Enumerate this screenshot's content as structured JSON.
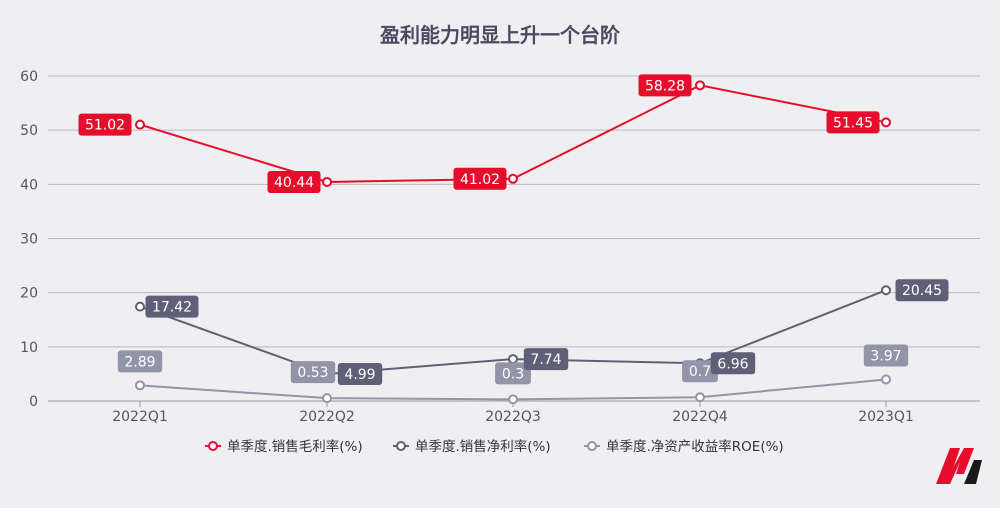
{
  "chart_data": {
    "type": "line",
    "title": "盈利能力明显上升一个台阶",
    "categories": [
      "2022Q1",
      "2022Q2",
      "2022Q3",
      "2022Q4",
      "2023Q1"
    ],
    "yticks": [
      0,
      10,
      20,
      30,
      40,
      50,
      60
    ],
    "ylim": [
      0,
      60
    ],
    "grid": true,
    "legend_position": "bottom",
    "series": [
      {
        "name": "单季度.销售毛利率(%)",
        "color": "#e60c2b",
        "labels": [
          "51.02",
          "40.44",
          "41.02",
          "58.28",
          "51.45"
        ],
        "values": [
          51.02,
          40.44,
          41.02,
          58.28,
          51.45
        ]
      },
      {
        "name": "单季度.销售净利率(%)",
        "color": "#5f6078",
        "labels": [
          "17.42",
          "4.99",
          "7.74",
          "6.96",
          "20.45"
        ],
        "values": [
          17.42,
          4.99,
          7.74,
          6.96,
          20.45
        ]
      },
      {
        "name": "单季度.净资产收益率ROE(%)",
        "color": "#9294a8",
        "labels": [
          "2.89",
          "0.53",
          "0.3",
          "0.7",
          "3.97"
        ],
        "values": [
          2.89,
          0.53,
          0.3,
          0.7,
          3.97
        ]
      }
    ]
  },
  "logo": {
    "name": "brand-logo",
    "colors": [
      "#e60c2b",
      "#1a1a1a"
    ]
  }
}
